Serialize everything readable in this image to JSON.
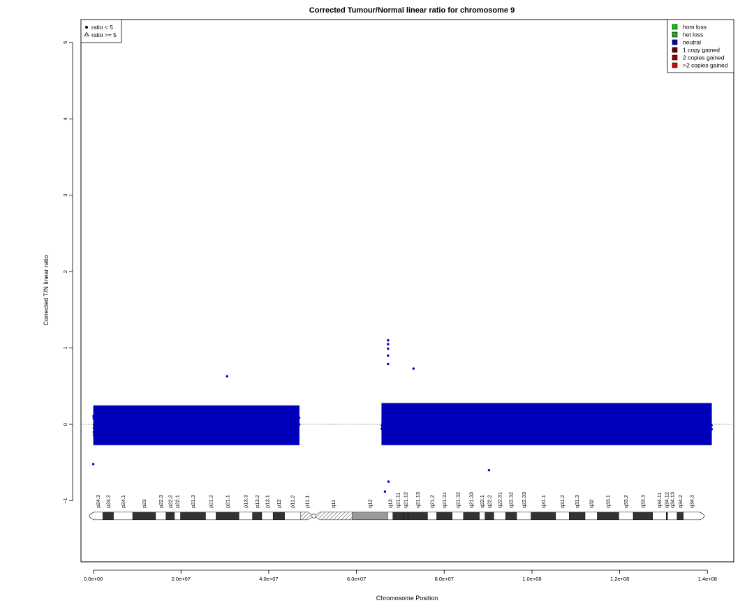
{
  "chart_data": {
    "type": "scatter",
    "title": "Corrected Tumour/Normal linear ratio for chromosome  9",
    "xlabel": "Chromosome Position",
    "ylabel": "Corrected T/N linear ratio",
    "xlim": [
      -2800000,
      146000000
    ],
    "ylim": [
      -1.8,
      5.3
    ],
    "x_ticks": [
      0,
      20000000,
      40000000,
      60000000,
      80000000,
      100000000,
      120000000,
      140000000
    ],
    "x_tick_labels": [
      "0.0e+00",
      "2.0e+07",
      "4.0e+07",
      "6.0e+07",
      "8.0e+07",
      "1.0e+08",
      "1.2e+08",
      "1.4e+08"
    ],
    "y_ticks": [
      -1,
      0,
      1,
      2,
      3,
      4,
      5
    ],
    "y_tick_labels": [
      "−1",
      "0",
      "1",
      "2",
      "3",
      "4",
      "5"
    ],
    "reference_line_y": 0,
    "point_color": "#0000bb",
    "series": [
      {
        "name": "neutral",
        "segments": [
          {
            "x_start": 0,
            "x_end": 47000000,
            "median": 0.0,
            "typical_min": -0.35,
            "typical_max": 0.4
          },
          {
            "x_start": 65700000,
            "x_end": 141000000,
            "median": 0.0,
            "typical_min": -0.35,
            "typical_max": 0.45
          }
        ],
        "outliers": [
          {
            "x": 67200000,
            "y": 1.1
          },
          {
            "x": 67200000,
            "y": 1.05
          },
          {
            "x": 67200000,
            "y": 0.99
          },
          {
            "x": 67200000,
            "y": 0.9
          },
          {
            "x": 67200000,
            "y": 0.79
          },
          {
            "x": 73000000,
            "y": 0.73
          },
          {
            "x": 30500000,
            "y": 0.63
          },
          {
            "x": 66500000,
            "y": -0.88
          },
          {
            "x": 67300000,
            "y": -0.75
          },
          {
            "x": 90200000,
            "y": -0.6
          },
          {
            "x": 0,
            "y": -0.52
          }
        ]
      }
    ],
    "shape_legend": {
      "position": "top-left",
      "items": [
        {
          "symbol": "dot",
          "label": "ratio < 5"
        },
        {
          "symbol": "triangle",
          "label": "ratio >= 5"
        }
      ]
    },
    "color_legend": {
      "position": "top-right",
      "items": [
        {
          "label": "hom loss",
          "color": "#00cc00"
        },
        {
          "label": "het loss",
          "color": "#22aa22"
        },
        {
          "label": "neutral",
          "color": "#0000bb"
        },
        {
          "label": "1 copy gained",
          "color": "#660000"
        },
        {
          "label": "2 copies gained",
          "color": "#990000"
        },
        {
          "label": ">2 copies gained",
          "color": "#dd0000"
        }
      ]
    },
    "ideogram": {
      "y": -1.2,
      "centromere": 50300000,
      "bands": [
        {
          "name": "p24.3",
          "start": 0,
          "end": 2200000,
          "stain": "gneg"
        },
        {
          "name": "p24.2",
          "start": 2200000,
          "end": 4600000,
          "stain": "gpos"
        },
        {
          "name": "p24.1",
          "start": 4600000,
          "end": 9000000,
          "stain": "gneg"
        },
        {
          "name": "p23",
          "start": 9000000,
          "end": 14200000,
          "stain": "gpos"
        },
        {
          "name": "p22.3",
          "start": 14200000,
          "end": 16600000,
          "stain": "gneg"
        },
        {
          "name": "p22.2",
          "start": 16600000,
          "end": 18500000,
          "stain": "gpos"
        },
        {
          "name": "p22.1",
          "start": 18500000,
          "end": 19900000,
          "stain": "gneg"
        },
        {
          "name": "p21.3",
          "start": 19900000,
          "end": 25600000,
          "stain": "gpos"
        },
        {
          "name": "p21.2",
          "start": 25600000,
          "end": 28000000,
          "stain": "gneg"
        },
        {
          "name": "p21.1",
          "start": 28000000,
          "end": 33200000,
          "stain": "gpos"
        },
        {
          "name": "p13.3",
          "start": 33200000,
          "end": 36300000,
          "stain": "gneg"
        },
        {
          "name": "p13.2",
          "start": 36300000,
          "end": 38400000,
          "stain": "gpos"
        },
        {
          "name": "p13.1",
          "start": 38400000,
          "end": 41000000,
          "stain": "gneg"
        },
        {
          "name": "p12",
          "start": 41000000,
          "end": 43600000,
          "stain": "gpos"
        },
        {
          "name": "p11.2",
          "start": 43600000,
          "end": 47300000,
          "stain": "gneg"
        },
        {
          "name": "p11.1",
          "start": 47300000,
          "end": 50300000,
          "stain": "acen"
        },
        {
          "name": "q11",
          "start": 50300000,
          "end": 59100000,
          "stain": "acen"
        },
        {
          "name": "q12",
          "start": 59100000,
          "end": 67100000,
          "stain": "gvar"
        },
        {
          "name": "q13",
          "start": 67100000,
          "end": 68300000,
          "stain": "gneg"
        },
        {
          "name": "q21.11",
          "start": 68300000,
          "end": 70600000,
          "stain": "gpos"
        },
        {
          "name": "q21.12",
          "start": 70600000,
          "end": 71800000,
          "stain": "gpos"
        },
        {
          "name": "q21.13",
          "start": 71800000,
          "end": 76200000,
          "stain": "gpos"
        },
        {
          "name": "q21.2",
          "start": 76200000,
          "end": 78300000,
          "stain": "gneg"
        },
        {
          "name": "q21.31",
          "start": 78300000,
          "end": 81800000,
          "stain": "gpos"
        },
        {
          "name": "q21.32",
          "start": 81800000,
          "end": 84400000,
          "stain": "gneg"
        },
        {
          "name": "q21.33",
          "start": 84400000,
          "end": 88000000,
          "stain": "gpos"
        },
        {
          "name": "q22.1",
          "start": 88000000,
          "end": 89300000,
          "stain": "gneg"
        },
        {
          "name": "q22.2",
          "start": 89300000,
          "end": 91300000,
          "stain": "gpos"
        },
        {
          "name": "q22.31",
          "start": 91300000,
          "end": 94000000,
          "stain": "gneg"
        },
        {
          "name": "q22.32",
          "start": 94000000,
          "end": 96500000,
          "stain": "gpos"
        },
        {
          "name": "q22.33",
          "start": 96500000,
          "end": 99800000,
          "stain": "gneg"
        },
        {
          "name": "q31.1",
          "start": 99800000,
          "end": 105400000,
          "stain": "gpos"
        },
        {
          "name": "q31.2",
          "start": 105400000,
          "end": 108500000,
          "stain": "gneg"
        },
        {
          "name": "q31.3",
          "start": 108500000,
          "end": 112100000,
          "stain": "gpos"
        },
        {
          "name": "q32",
          "start": 112100000,
          "end": 114900000,
          "stain": "gneg"
        },
        {
          "name": "q33.1",
          "start": 114900000,
          "end": 119800000,
          "stain": "gpos"
        },
        {
          "name": "q33.2",
          "start": 119800000,
          "end": 123100000,
          "stain": "gneg"
        },
        {
          "name": "q33.3",
          "start": 123100000,
          "end": 127500000,
          "stain": "gpos"
        },
        {
          "name": "q34.11",
          "start": 127500000,
          "end": 130600000,
          "stain": "gneg"
        },
        {
          "name": "q34.12",
          "start": 130600000,
          "end": 130900000,
          "stain": "gpos"
        },
        {
          "name": "q34.13",
          "start": 130900000,
          "end": 133100000,
          "stain": "gneg"
        },
        {
          "name": "q34.2",
          "start": 133100000,
          "end": 134500000,
          "stain": "gpos"
        },
        {
          "name": "q34.3",
          "start": 134500000,
          "end": 138400000,
          "stain": "gneg"
        }
      ]
    }
  }
}
